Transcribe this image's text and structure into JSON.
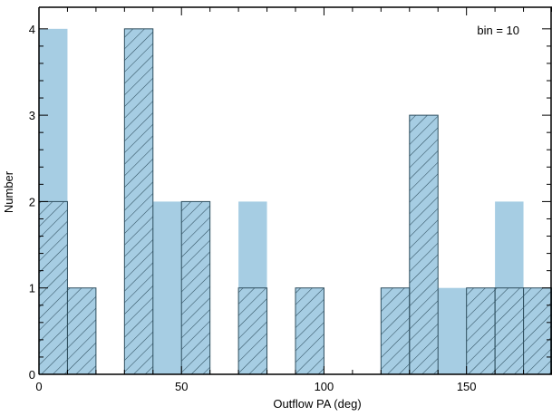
{
  "chart_data": {
    "type": "bar",
    "xlabel": "Outflow PA (deg)",
    "ylabel": "Number",
    "annotation": "bin = 10",
    "xlim": [
      0,
      180
    ],
    "ylim": [
      0,
      4.25
    ],
    "x_ticks": [
      0,
      50,
      100,
      150
    ],
    "y_ticks": [
      0,
      1,
      2,
      3,
      4
    ],
    "bin_edges": [
      0,
      10,
      20,
      30,
      40,
      50,
      60,
      70,
      80,
      90,
      100,
      110,
      120,
      130,
      140,
      150,
      160,
      170,
      180
    ],
    "series": [
      {
        "style": "solid",
        "color": "#a6cde3",
        "values": [
          4,
          1,
          0,
          4,
          2,
          2,
          0,
          2,
          0,
          1,
          0,
          0,
          1,
          3,
          1,
          1,
          2,
          1
        ]
      },
      {
        "style": "hatched",
        "color": "#2f4f5f",
        "values": [
          2,
          1,
          0,
          4,
          0,
          2,
          0,
          1,
          0,
          1,
          0,
          0,
          1,
          3,
          0,
          1,
          1,
          1
        ]
      }
    ],
    "grid": false
  }
}
